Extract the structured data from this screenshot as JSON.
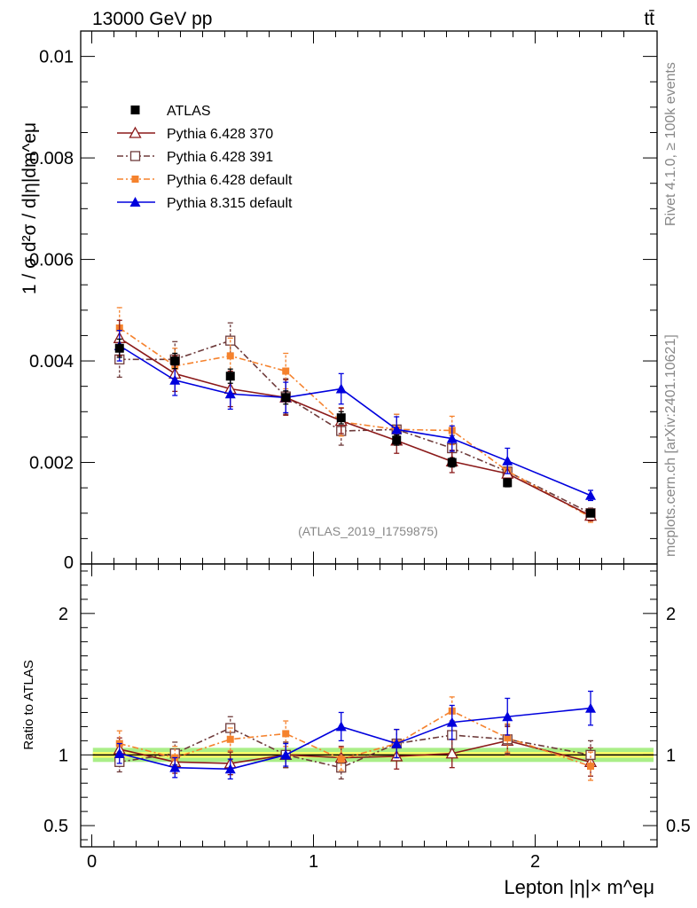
{
  "header": {
    "left_title": "13000 GeV pp",
    "right_title": "tt̄"
  },
  "side_labels": {
    "rivet": "Rivet 4.1.0, ≥ 100k events",
    "mcplots": "mcplots.cern.ch [arXiv:2401.10621]"
  },
  "watermark": "(ATLAS_2019_I1759875)",
  "colors": {
    "atlas": "#000000",
    "p370": "#8b1a1a",
    "p391": "#6e3b3b",
    "pdef": "#f5822d",
    "p8": "#0000dd",
    "band_inner": "#ffff66",
    "band_outer": "#aaee88"
  },
  "chart_data": [
    {
      "type": "line",
      "panel": "main",
      "ylabel": "1 / σ d²σ / d|η|dm^eμ",
      "ylim": [
        0,
        0.0105
      ],
      "yticks": [
        0.002,
        0.004,
        0.006,
        0.008,
        0.01
      ],
      "ytick_labels": [
        "0.002",
        "0.004",
        "0.006",
        "0.008",
        "0.01"
      ],
      "ybottom_label": "0",
      "xlim": [
        -0.05,
        2.55
      ],
      "x": [
        0.125,
        0.375,
        0.625,
        0.875,
        1.125,
        1.375,
        1.625,
        1.875,
        2.25
      ],
      "series": [
        {
          "key": "atlas",
          "name": "ATLAS",
          "marker": "square-filled",
          "values": [
            0.00425,
            0.004,
            0.0037,
            0.00328,
            0.00288,
            0.00244,
            0.002,
            0.0016,
            0.001
          ],
          "err": [
            0.00018,
            0.00015,
            0.00014,
            0.00013,
            0.00012,
            0.0001,
            9e-05,
            8e-05,
            6e-05
          ]
        },
        {
          "key": "p370",
          "name": "Pythia 6.428 370",
          "marker": "triangle-open",
          "line": "solid",
          "values": [
            0.00445,
            0.00375,
            0.00345,
            0.00328,
            0.00282,
            0.00243,
            0.00202,
            0.00178,
            0.00095
          ],
          "err": [
            0.00035,
            0.00035,
            0.00035,
            0.00035,
            0.00025,
            0.00025,
            0.00022,
            0.0002,
            0.0001
          ]
        },
        {
          "key": "p391",
          "name": "Pythia 6.428 391",
          "marker": "square-open",
          "line": "dashdot",
          "values": [
            0.00403,
            0.00403,
            0.0044,
            0.0033,
            0.00262,
            0.00265,
            0.00228,
            0.00182,
            0.001
          ],
          "err": [
            0.00035,
            0.00035,
            0.00035,
            0.00035,
            0.00028,
            0.0003,
            0.00025,
            0.0002,
            0.0001
          ]
        },
        {
          "key": "pdef",
          "name": "Pythia 6.428 default",
          "marker": "square-filled-small",
          "line": "dashdot",
          "values": [
            0.00465,
            0.0039,
            0.0041,
            0.0038,
            0.0028,
            0.00265,
            0.00263,
            0.00183,
            0.00092
          ],
          "err": [
            0.0004,
            0.00035,
            0.00035,
            0.00035,
            0.00028,
            0.0003,
            0.00028,
            0.0002,
            0.0001
          ]
        },
        {
          "key": "p8",
          "name": "Pythia 8.315 default",
          "marker": "triangle-filled",
          "line": "solid",
          "values": [
            0.0043,
            0.00362,
            0.00335,
            0.00328,
            0.00345,
            0.00265,
            0.00247,
            0.00203,
            0.00135
          ],
          "err": [
            0.0003,
            0.0003,
            0.0003,
            0.0003,
            0.0003,
            0.00025,
            0.00025,
            0.00025,
            0.0001
          ]
        }
      ]
    },
    {
      "type": "line",
      "panel": "ratio",
      "ylabel": "Ratio to ATLAS",
      "xlabel": "Lepton |η|× m^eμ",
      "ylim": [
        0.35,
        2.35
      ],
      "yticks": [
        0.5,
        1,
        2
      ],
      "ytick_labels": [
        "0.5",
        "1",
        "2"
      ],
      "xticks": [
        0,
        1,
        2
      ],
      "xtick_labels": [
        "0",
        "1",
        "2"
      ],
      "band": {
        "inner": 0.02,
        "outer": 0.05
      },
      "series": [
        {
          "key": "p370",
          "values": [
            1.04,
            0.95,
            0.94,
            1.0,
            0.98,
            0.99,
            1.01,
            1.1,
            0.95
          ],
          "err": [
            0.08,
            0.08,
            0.08,
            0.09,
            0.08,
            0.09,
            0.1,
            0.1,
            0.1
          ]
        },
        {
          "key": "p391",
          "values": [
            0.95,
            1.01,
            1.19,
            1.0,
            0.91,
            1.08,
            1.14,
            1.11,
            1.0
          ],
          "err": [
            0.07,
            0.08,
            0.08,
            0.09,
            0.08,
            0.1,
            0.1,
            0.1,
            0.1
          ]
        },
        {
          "key": "pdef",
          "values": [
            1.08,
            0.98,
            1.11,
            1.15,
            0.97,
            1.08,
            1.31,
            1.12,
            0.92
          ],
          "err": [
            0.09,
            0.08,
            0.08,
            0.09,
            0.08,
            0.1,
            0.1,
            0.1,
            0.1
          ]
        },
        {
          "key": "p8",
          "values": [
            1.01,
            0.91,
            0.9,
            1.0,
            1.2,
            1.08,
            1.23,
            1.27,
            1.33
          ],
          "err": [
            0.07,
            0.07,
            0.07,
            0.08,
            0.1,
            0.1,
            0.12,
            0.13,
            0.12
          ]
        }
      ]
    }
  ]
}
